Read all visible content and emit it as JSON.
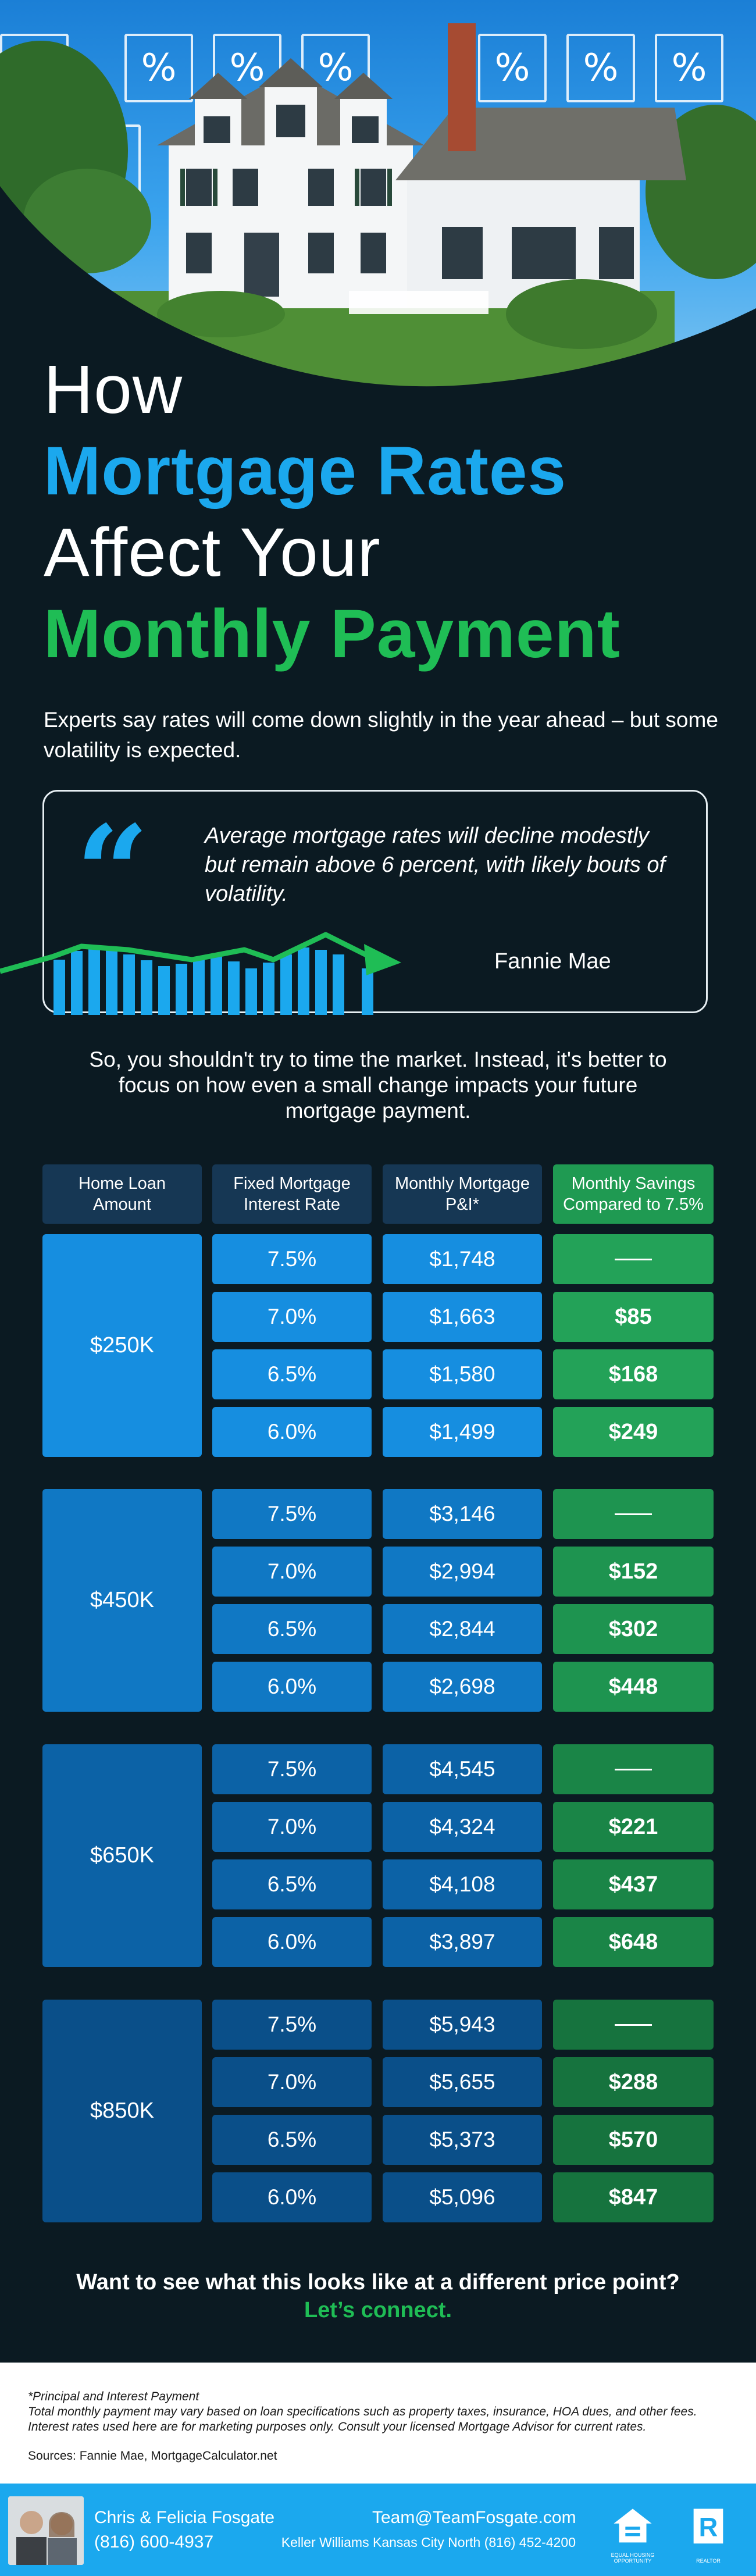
{
  "title": {
    "line1": "How",
    "line2": "Mortgage Rates",
    "line3": "Affect Your",
    "line4": "Monthly Payment"
  },
  "subtitle": "Experts say rates will come down slightly in the year ahead – but some volatility is expected.",
  "quote": {
    "text": "Average mortgage rates will decline modestly but remain above 6 percent, with likely bouts of volatility.",
    "source": "Fannie Mae"
  },
  "intro": "So, you shouldn't try to time the market. Instead, it's better to focus on how even a small change impacts your future mortgage payment.",
  "table": {
    "headers": [
      "Home Loan Amount",
      "Fixed Mortgage Interest Rate",
      "Monthly Mortgage P&I*",
      "Monthly Savings Compared to 7.5%"
    ],
    "groups": [
      {
        "amount": "$250K",
        "rows": [
          {
            "rate": "7.5%",
            "payment": "$1,748",
            "savings": ""
          },
          {
            "rate": "7.0%",
            "payment": "$1,663",
            "savings": "$85"
          },
          {
            "rate": "6.5%",
            "payment": "$1,580",
            "savings": "$168"
          },
          {
            "rate": "6.0%",
            "payment": "$1,499",
            "savings": "$249"
          }
        ]
      },
      {
        "amount": "$450K",
        "rows": [
          {
            "rate": "7.5%",
            "payment": "$3,146",
            "savings": ""
          },
          {
            "rate": "7.0%",
            "payment": "$2,994",
            "savings": "$152"
          },
          {
            "rate": "6.5%",
            "payment": "$2,844",
            "savings": "$302"
          },
          {
            "rate": "6.0%",
            "payment": "$2,698",
            "savings": "$448"
          }
        ]
      },
      {
        "amount": "$650K",
        "rows": [
          {
            "rate": "7.5%",
            "payment": "$4,545",
            "savings": ""
          },
          {
            "rate": "7.0%",
            "payment": "$4,324",
            "savings": "$221"
          },
          {
            "rate": "6.5%",
            "payment": "$4,108",
            "savings": "$437"
          },
          {
            "rate": "6.0%",
            "payment": "$3,897",
            "savings": "$648"
          }
        ]
      },
      {
        "amount": "$850K",
        "rows": [
          {
            "rate": "7.5%",
            "payment": "$5,943",
            "savings": ""
          },
          {
            "rate": "7.0%",
            "payment": "$5,655",
            "savings": "$288"
          },
          {
            "rate": "6.5%",
            "payment": "$5,373",
            "savings": "$570"
          },
          {
            "rate": "6.0%",
            "payment": "$5,096",
            "savings": "$847"
          }
        ]
      }
    ],
    "group_colors": [
      {
        "amount": "#168ee0",
        "cell": "#168ee0",
        "savings": "#23a258"
      },
      {
        "amount": "#1078c4",
        "cell": "#1078c4",
        "savings": "#1e9450"
      },
      {
        "amount": "#0c62a6",
        "cell": "#0c62a6",
        "savings": "#1a8547"
      },
      {
        "amount": "#0a4f89",
        "cell": "#0a4f89",
        "savings": "#16733e"
      }
    ]
  },
  "cta": {
    "question": "Want to see what this looks like at a different price point?",
    "action": "Let’s connect."
  },
  "footnotes": {
    "asterisk": "*Principal and Interest Payment",
    "disclaimer": "Total monthly payment may vary based on loan specifications such as property taxes, insurance, HOA dues, and other fees. Interest rates used here are for marketing purposes only. Consult your licensed Mortgage Advisor for current rates.",
    "sources": "Sources: Fannie Mae, MortgageCalculator.net"
  },
  "footer": {
    "names": "Chris & Felicia Fosgate",
    "phone": "(816) 600-4937",
    "email": "Team@TeamFosgate.com",
    "office": "Keller Williams Kansas City North (816) 452-4200",
    "logo1_caption": "EQUAL HOUSING OPPORTUNITY",
    "logo2_caption": "REALTOR"
  },
  "colors": {
    "background": "#0b1a22",
    "blue": "#1ba8ee",
    "green": "#1fbd55"
  },
  "icons": [
    "percent-icon",
    "quote-icon",
    "trend-arrow-icon",
    "equal-housing-icon",
    "realtor-icon"
  ]
}
